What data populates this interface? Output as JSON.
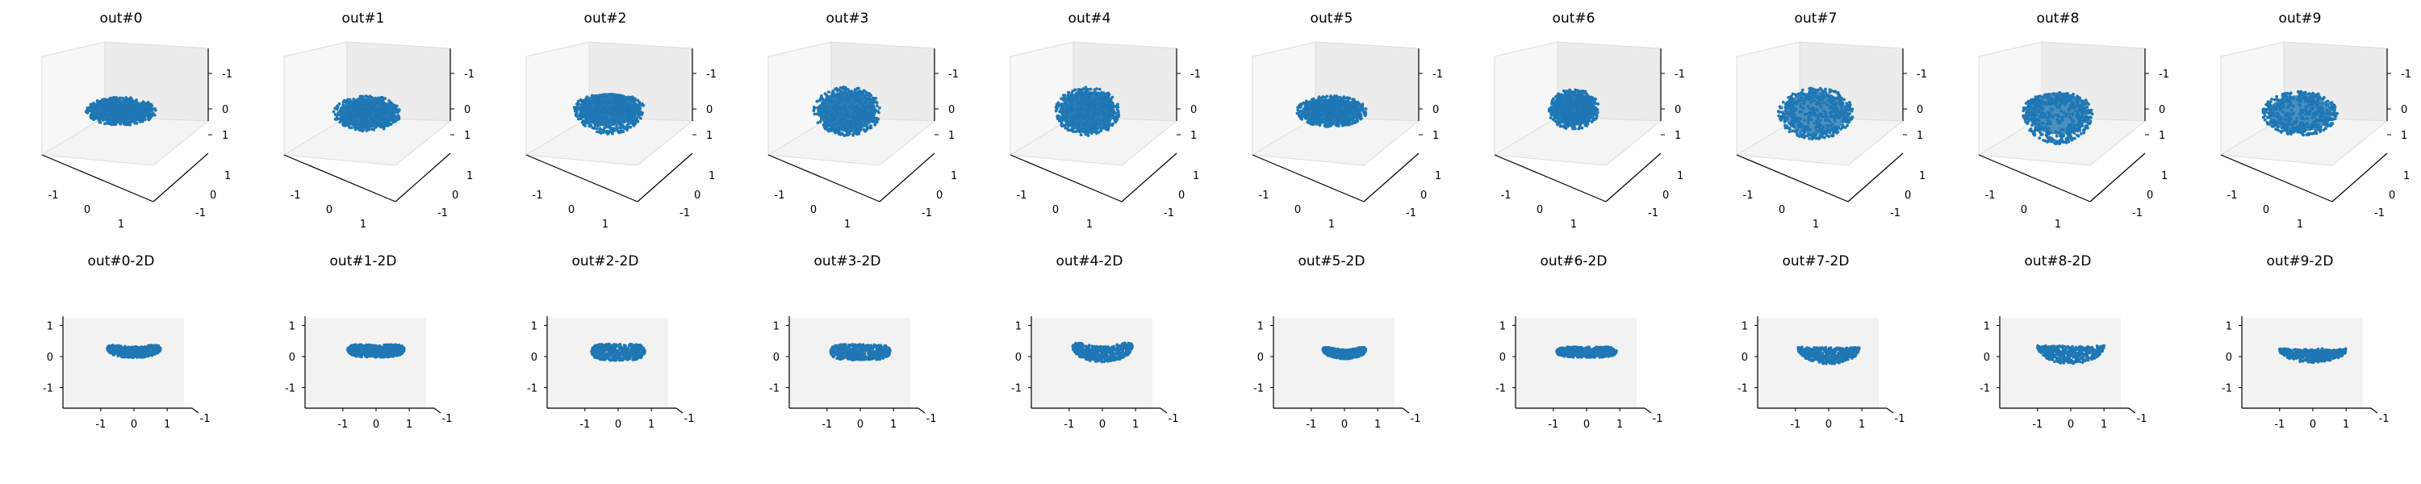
{
  "chart_data": {
    "type": "scatter",
    "point_color": "#1f77b4",
    "pane_color": "#f2f2f2",
    "grid": false,
    "rows": [
      {
        "view": "3d",
        "xlim": [
          -1.5,
          1.5
        ],
        "ylim": [
          -1.5,
          1.5
        ],
        "zlim": [
          -1.5,
          1.5
        ],
        "xticks": [
          "-1",
          "0",
          "1"
        ],
        "yticks": [
          "-1",
          "0",
          "1"
        ],
        "zticks": [
          "-1",
          "0",
          "1"
        ],
        "panels": [
          {
            "title": "out#0",
            "shape": "disc",
            "cx": 0.0,
            "cy": 0.0,
            "rx": 0.75,
            "ry": 0.32,
            "density": "dense"
          },
          {
            "title": "out#1",
            "shape": "disc",
            "cx": 0.1,
            "cy": 0.05,
            "rx": 0.72,
            "ry": 0.4,
            "density": "dense"
          },
          {
            "title": "out#2",
            "shape": "bowl",
            "cx": 0.1,
            "cy": -0.05,
            "rx": 0.75,
            "ry": 0.45,
            "density": "medium"
          },
          {
            "title": "out#3",
            "shape": "disc",
            "cx": 0.0,
            "cy": 0.0,
            "rx": 0.72,
            "ry": 0.55,
            "density": "dense"
          },
          {
            "title": "out#4",
            "shape": "disc",
            "cx": -0.05,
            "cy": 0.0,
            "rx": 0.68,
            "ry": 0.55,
            "density": "dense"
          },
          {
            "title": "out#5",
            "shape": "disc",
            "cx": 0.0,
            "cy": 0.0,
            "rx": 0.75,
            "ry": 0.35,
            "density": "dense"
          },
          {
            "title": "out#6",
            "shape": "disc",
            "cx": 0.0,
            "cy": -0.05,
            "rx": 0.55,
            "ry": 0.45,
            "density": "dense"
          },
          {
            "title": "out#7",
            "shape": "disc",
            "cx": 0.0,
            "cy": 0.05,
            "rx": 0.8,
            "ry": 0.58,
            "density": "sparse-center"
          },
          {
            "title": "out#8",
            "shape": "bowl",
            "cx": 0.0,
            "cy": 0.05,
            "rx": 0.75,
            "ry": 0.58,
            "density": "sparse-center"
          },
          {
            "title": "out#9",
            "shape": "disc",
            "cx": 0.0,
            "cy": 0.05,
            "rx": 0.8,
            "ry": 0.5,
            "density": "sparse-center"
          }
        ]
      },
      {
        "view": "2d",
        "xlim": [
          -1.7,
          1.7
        ],
        "ylim": [
          -1.4,
          1.4
        ],
        "xticks": [
          "-1",
          "0",
          "1"
        ],
        "yticks": [
          "-1",
          "0",
          "1"
        ],
        "corner_tick": "-1",
        "panels": [
          {
            "title": "out#0-2D",
            "shape": "smile",
            "cx": 0.0,
            "cy": 0.2,
            "rx": 0.8,
            "ry": 0.18,
            "curve": 0.12
          },
          {
            "title": "out#1-2D",
            "shape": "band",
            "cx": 0.0,
            "cy": 0.2,
            "rx": 0.85,
            "ry": 0.2,
            "curve": 0.05
          },
          {
            "title": "out#2-2D",
            "shape": "band",
            "cx": 0.0,
            "cy": 0.15,
            "rx": 0.8,
            "ry": 0.26,
            "curve": 0.03
          },
          {
            "title": "out#3-2D",
            "shape": "band",
            "cx": 0.0,
            "cy": 0.15,
            "rx": 0.9,
            "ry": 0.25,
            "curve": 0.02
          },
          {
            "title": "out#4-2D",
            "shape": "smile",
            "cx": 0.0,
            "cy": 0.2,
            "rx": 0.9,
            "ry": 0.25,
            "curve": 0.25
          },
          {
            "title": "out#5-2D",
            "shape": "smile",
            "cx": 0.0,
            "cy": 0.15,
            "rx": 0.65,
            "ry": 0.15,
            "curve": 0.15
          },
          {
            "title": "out#6-2D",
            "shape": "band",
            "cx": 0.0,
            "cy": 0.15,
            "rx": 0.9,
            "ry": 0.17,
            "curve": 0.02
          },
          {
            "title": "out#7-2D",
            "shape": "cup",
            "cx": 0.0,
            "cy": 0.25,
            "rx": 0.92,
            "ry": 0.5,
            "curve": 0.0
          },
          {
            "title": "out#8-2D",
            "shape": "cup",
            "cx": 0.0,
            "cy": 0.3,
            "rx": 1.0,
            "ry": 0.55,
            "curve": 0.0
          },
          {
            "title": "out#9-2D",
            "shape": "cup",
            "cx": 0.0,
            "cy": 0.2,
            "rx": 1.0,
            "ry": 0.4,
            "curve": 0.0
          }
        ]
      }
    ]
  }
}
